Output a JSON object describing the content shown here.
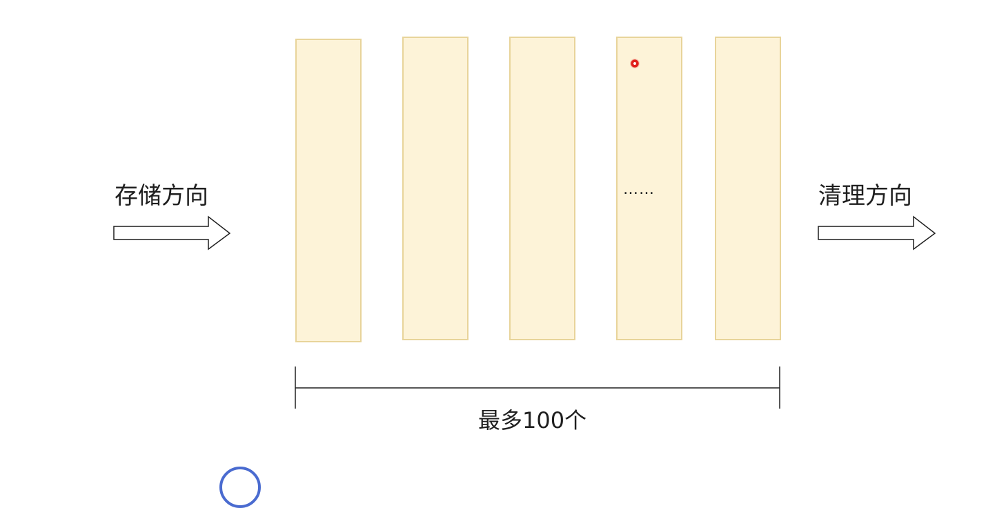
{
  "labels": {
    "store_direction": "存储方向",
    "clean_direction": "清理方向",
    "max_count": "最多100个",
    "ellipsis": "……"
  },
  "slots": [
    {
      "id": 1
    },
    {
      "id": 2
    },
    {
      "id": 3
    },
    {
      "id": 4
    },
    {
      "id": 5
    }
  ],
  "colors": {
    "slot_fill": "#fdf3d8",
    "slot_border": "#e8d49a",
    "line": "#1f1f1f",
    "cursor": "#e0201c"
  }
}
